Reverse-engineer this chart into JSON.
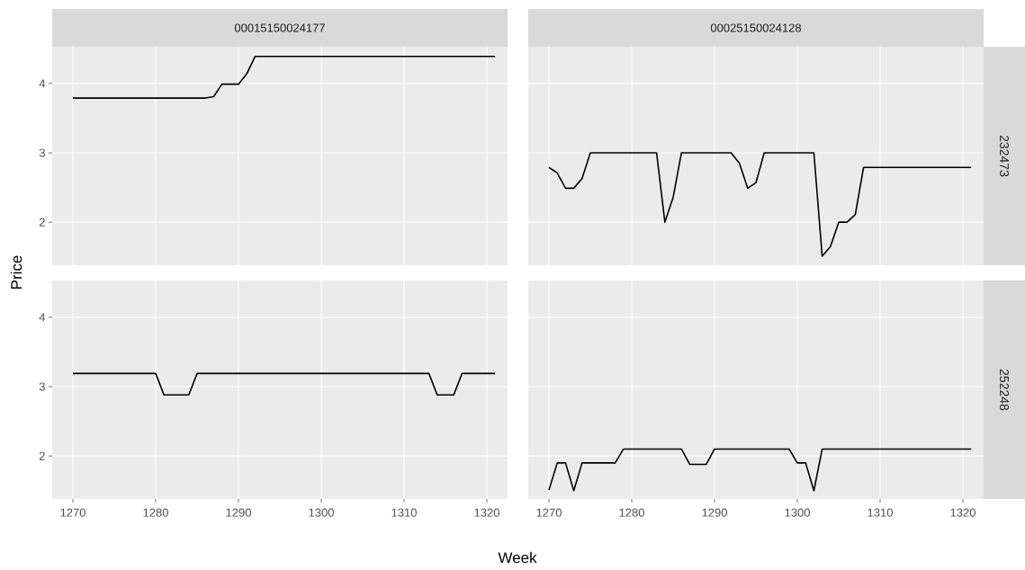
{
  "chart_data": [
    {
      "type": "line",
      "title": "00015150024177",
      "ylabel": "Price",
      "grid": true,
      "tick_labels": "y",
      "xlim": [
        1267.5,
        1322.5
      ],
      "ylim": [
        1.38,
        4.53
      ],
      "xticks": [
        1270,
        1280,
        1290,
        1300,
        1310,
        1320
      ],
      "yticks": [
        2,
        3,
        4
      ],
      "series": [
        {
          "color": "#000000",
          "x": [
            1270,
            1286,
            1287,
            1288,
            1290,
            1291,
            1292,
            1321
          ],
          "values": [
            3.79,
            3.79,
            3.81,
            3.99,
            3.99,
            4.14,
            4.39,
            4.39
          ]
        }
      ]
    },
    {
      "type": "line",
      "title": "00025150024128",
      "annotations": [
        "232473"
      ],
      "grid": true,
      "tick_labels": false,
      "xlim": [
        1267.5,
        1322.5
      ],
      "ylim": [
        1.38,
        4.53
      ],
      "xticks": [
        1270,
        1280,
        1290,
        1300,
        1310,
        1320
      ],
      "yticks": [
        2,
        3,
        4
      ],
      "series": [
        {
          "color": "#000000",
          "x": [
            1270,
            1271,
            1272,
            1273,
            1274,
            1275,
            1283,
            1284,
            1285,
            1286,
            1292,
            1293,
            1294,
            1295,
            1296,
            1302,
            1303,
            1304,
            1305,
            1306,
            1307,
            1308,
            1321
          ],
          "values": [
            2.79,
            2.71,
            2.49,
            2.49,
            2.63,
            3.0,
            3.0,
            2.0,
            2.36,
            3.0,
            3.0,
            2.85,
            2.49,
            2.57,
            3.0,
            3.0,
            1.51,
            1.65,
            2.0,
            2.0,
            2.11,
            2.79,
            2.79
          ]
        }
      ]
    },
    {
      "type": "line",
      "xlabel": "Week",
      "grid": true,
      "xlim": [
        1267.5,
        1322.5
      ],
      "ylim": [
        1.38,
        4.53
      ],
      "xticks": [
        1270,
        1280,
        1290,
        1300,
        1310,
        1320
      ],
      "yticks": [
        2,
        3,
        4
      ],
      "series": [
        {
          "color": "#000000",
          "x": [
            1270,
            1280,
            1281,
            1284,
            1285,
            1313,
            1314,
            1316,
            1317,
            1321
          ],
          "values": [
            3.19,
            3.19,
            2.88,
            2.88,
            3.19,
            3.19,
            2.88,
            2.88,
            3.19,
            3.19
          ]
        }
      ]
    },
    {
      "type": "line",
      "annotations": [
        "252248"
      ],
      "grid": true,
      "tick_labels": "x",
      "xlim": [
        1267.5,
        1322.5
      ],
      "ylim": [
        1.38,
        4.53
      ],
      "xticks": [
        1270,
        1280,
        1290,
        1300,
        1310,
        1320
      ],
      "yticks": [
        2,
        3,
        4
      ],
      "series": [
        {
          "color": "#000000",
          "x": [
            1270,
            1271,
            1272,
            1273,
            1274,
            1278,
            1279,
            1286,
            1287,
            1289,
            1290,
            1299,
            1300,
            1301,
            1302,
            1303,
            1321
          ],
          "values": [
            1.51,
            1.9,
            1.9,
            1.5,
            1.9,
            1.9,
            2.1,
            2.1,
            1.88,
            1.88,
            2.1,
            2.1,
            1.9,
            1.9,
            1.5,
            2.1,
            2.1
          ]
        }
      ]
    }
  ]
}
